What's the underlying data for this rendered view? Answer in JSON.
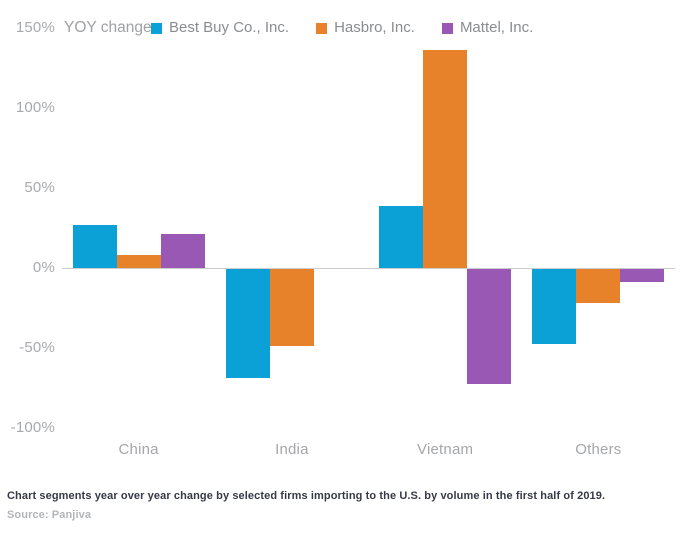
{
  "header": {
    "y_axis_unit_label": "YOY change"
  },
  "chart_data": {
    "type": "bar",
    "title": "YOY change",
    "categories": [
      "China",
      "India",
      "Vietnam",
      "Others"
    ],
    "series": [
      {
        "name": "Best Buy Co., Inc.",
        "color": "#0ba1d6",
        "values": [
          27,
          -68,
          39,
          -47
        ]
      },
      {
        "name": "Hasbro, Inc.",
        "color": "#e7812a",
        "values": [
          8,
          -48,
          136,
          -21
        ]
      },
      {
        "name": "Mattel, Inc.",
        "color": "#9a58b5",
        "values": [
          21,
          null,
          -72,
          -8
        ]
      }
    ],
    "xlabel": "",
    "ylabel": "YOY change (%)",
    "ylim": [
      -100,
      150
    ],
    "yticks": [
      150,
      100,
      50,
      0,
      -50,
      -100
    ],
    "ytick_labels": [
      "150%",
      "100%",
      "50%",
      "0%",
      "-50%",
      "-100%"
    ],
    "grid": false,
    "legend_position": "top",
    "value_unit": "percent YOY"
  },
  "caption": {
    "text": "Chart segments year over year change by selected firms importing to the U.S. by volume in the first half of 2019.",
    "source": "Source: Panjiva"
  },
  "colors": {
    "best_buy": "#0ba1d6",
    "hasbro": "#e7812a",
    "mattel": "#9a58b5",
    "axis_text": "#a7a9ac",
    "zero_line": "#cbcccd",
    "caption_text": "#373946",
    "source_text": "#b3b5b8"
  }
}
